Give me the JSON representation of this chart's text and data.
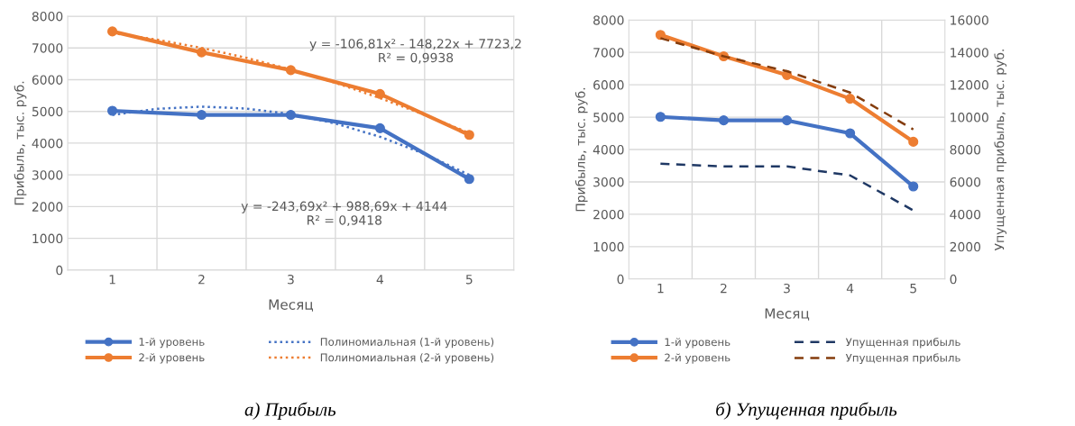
{
  "chart_data": [
    {
      "type": "line",
      "xlabel": "Месяц",
      "ylabel": "Прибыль, тыс. руб.",
      "x": [
        1,
        2,
        3,
        4,
        5
      ],
      "xlim": [
        0.5,
        5.5
      ],
      "xticks": [
        1,
        2,
        3,
        4,
        5
      ],
      "ylim": [
        0,
        8000
      ],
      "yticks": [
        0,
        1000,
        2000,
        3000,
        4000,
        5000,
        6000,
        7000,
        8000
      ],
      "grid": true,
      "legend": "bottom",
      "marker": "circle",
      "series": [
        {
          "name": "1-й уровень",
          "color": "#4472c4",
          "values": [
            5020,
            4890,
            4890,
            4470,
            2870
          ]
        },
        {
          "name": "2-й уровень",
          "color": "#ed7d31",
          "values": [
            7520,
            6860,
            6300,
            5550,
            4260
          ]
        },
        {
          "name": "Полиномиальная (1-й уровень)",
          "color": "#4472c4",
          "marker": "none",
          "line_style": "dotted",
          "x": [
            1,
            1.5,
            2,
            2.5,
            3,
            3.5,
            4,
            4.5,
            5
          ],
          "values": [
            4890,
            5080,
            5150,
            5090,
            4920,
            4620,
            4200,
            3660,
            3000
          ]
        },
        {
          "name": "Полиномиальная (2-й уровень)",
          "color": "#ed7d31",
          "marker": "none",
          "line_style": "dotted",
          "x": [
            1,
            1.5,
            2,
            2.5,
            3,
            3.5,
            4,
            4.5,
            5
          ],
          "values": [
            7470,
            7260,
            7000,
            6690,
            6320,
            5900,
            5420,
            4890,
            4320
          ]
        }
      ],
      "annotations": [
        "y = -106,81x² - 148,22x + 7723,2\nR² = 0,9938",
        "y = -243,69x² + 988,69x + 4144\nR² = 0,9418",
        "а) Прибыль"
      ]
    },
    {
      "type": "line",
      "xlabel": "Месяц",
      "ylabel": "Прибыль, тыс. руб.",
      "y2label": "Упущенная прибыль, тыс. руб.",
      "x": [
        1,
        2,
        3,
        4,
        5
      ],
      "xlim": [
        0.5,
        5.5
      ],
      "xticks": [
        1,
        2,
        3,
        4,
        5
      ],
      "ylim": [
        0,
        8000
      ],
      "yticks": [
        0,
        1000,
        2000,
        3000,
        4000,
        5000,
        6000,
        7000,
        8000
      ],
      "y2lim": [
        0,
        16000
      ],
      "y2ticks": [
        0,
        2000,
        4000,
        6000,
        8000,
        10000,
        12000,
        14000,
        16000
      ],
      "grid": true,
      "legend": "bottom",
      "marker": "circle",
      "series": [
        {
          "name": "1-й уровень",
          "color": "#4472c4",
          "values": [
            5010,
            4900,
            4900,
            4500,
            2860
          ]
        },
        {
          "name": "2-й уровень",
          "color": "#ed7d31",
          "values": [
            7540,
            6880,
            6300,
            5570,
            4240
          ]
        },
        {
          "name": "Упущенная прибыль",
          "color": "#1f3864",
          "axis": "y2",
          "marker": "none",
          "line_style": "dashed",
          "values": [
            7120,
            6960,
            6960,
            6400,
            4240
          ]
        },
        {
          "name": "Упущенная прибыль",
          "color": "#843c0c",
          "axis": "y2",
          "marker": "none",
          "line_style": "dashed",
          "values": [
            14880,
            13760,
            12840,
            11520,
            9240
          ]
        }
      ],
      "annotations": [
        "б) Упущенная прибыль"
      ]
    }
  ]
}
